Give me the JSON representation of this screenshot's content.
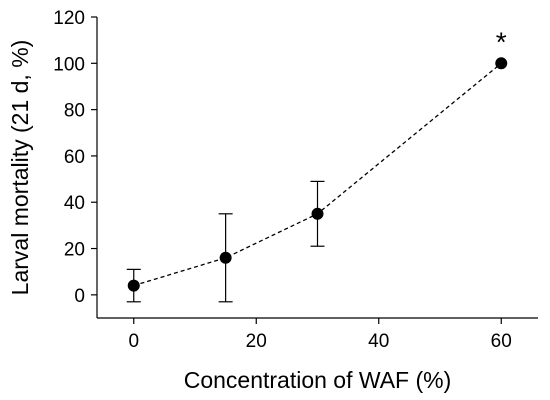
{
  "chart_data": {
    "type": "line",
    "xlabel": "Concentration of WAF (%)",
    "ylabel": "Larval mortality (21 d, %)",
    "xlim": [
      -6,
      66
    ],
    "ylim": [
      -10,
      120
    ],
    "xticks": [
      0,
      20,
      40,
      60
    ],
    "yticks": [
      0,
      20,
      40,
      60,
      80,
      100,
      120
    ],
    "grid": false,
    "line_style": "dashed",
    "marker": "filled-circle",
    "color": "#000000",
    "series": [
      {
        "x": [
          0,
          15,
          30,
          60
        ],
        "y": [
          4,
          16,
          35,
          100
        ],
        "error_low": [
          -3,
          -3,
          21,
          100
        ],
        "error_high": [
          11,
          35,
          49,
          100
        ]
      }
    ],
    "annotations": [
      {
        "text": "*",
        "x": 60,
        "y": 100
      }
    ]
  }
}
